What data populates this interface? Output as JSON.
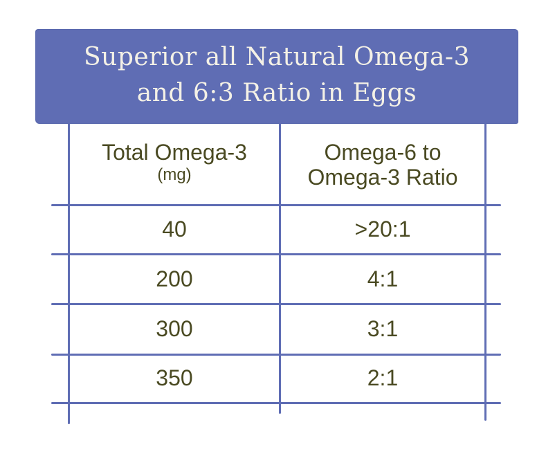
{
  "title": {
    "line1": "Superior all Natural Omega-3",
    "line2": "and 6:3 Ratio in Eggs"
  },
  "table": {
    "headers": {
      "col1": {
        "label": "Total Omega-3",
        "unit": "(mg)"
      },
      "col2": {
        "line1": "Omega-6 to",
        "line2": "Omega-3 Ratio"
      }
    },
    "rows": [
      {
        "omega3": "40",
        "ratio": ">20:1"
      },
      {
        "omega3": "200",
        "ratio": "4:1"
      },
      {
        "omega3": "300",
        "ratio": "3:1"
      },
      {
        "omega3": "350",
        "ratio": "2:1"
      }
    ]
  },
  "colors": {
    "banner": "#5f6db4",
    "grid": "#5f6db4",
    "title_text": "#f4f1e6",
    "cell_text": "#4a4a22"
  }
}
